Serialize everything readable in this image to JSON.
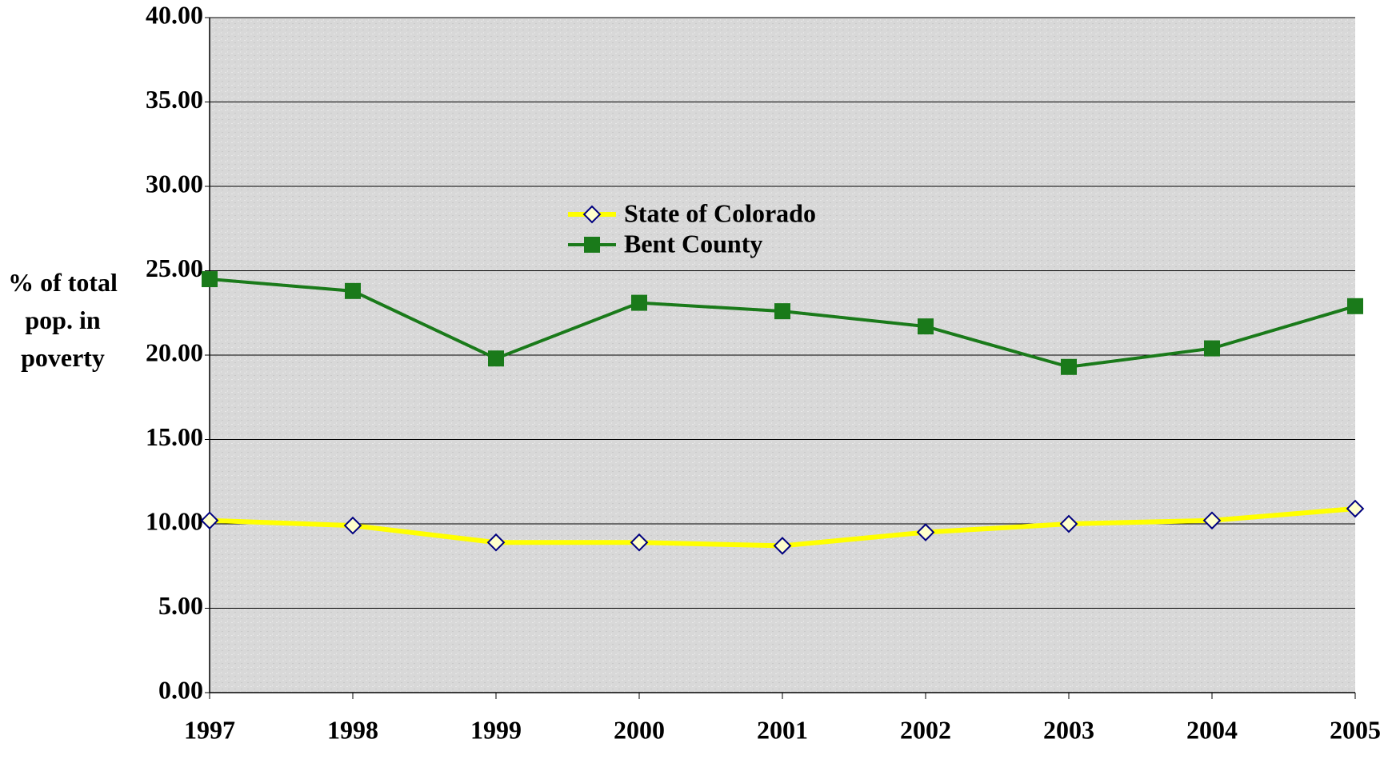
{
  "chart_data": {
    "type": "line",
    "y_label": "% of total pop. in poverty",
    "categories": [
      "1997",
      "1998",
      "1999",
      "2000",
      "2001",
      "2002",
      "2003",
      "2004",
      "2005"
    ],
    "series": [
      {
        "name": "State of Colorado",
        "color": "#ffff00",
        "marker_color": "#000080",
        "values": [
          10.2,
          9.9,
          8.9,
          8.9,
          8.7,
          9.5,
          10.0,
          10.2,
          10.9
        ]
      },
      {
        "name": "Bent County",
        "color": "#1a7a1a",
        "values": [
          24.5,
          23.8,
          19.8,
          23.1,
          22.6,
          21.7,
          19.3,
          20.4,
          22.9
        ]
      }
    ],
    "ylim": [
      0,
      40
    ],
    "yticks": [
      {
        "value": 0,
        "label": "0.00"
      },
      {
        "value": 5,
        "label": "5.00"
      },
      {
        "value": 10,
        "label": "10.00"
      },
      {
        "value": 15,
        "label": "15.00"
      },
      {
        "value": 20,
        "label": "20.00"
      },
      {
        "value": 25,
        "label": "25.00"
      },
      {
        "value": 30,
        "label": "30.00"
      },
      {
        "value": 35,
        "label": "35.00"
      },
      {
        "value": 40,
        "label": "40.00"
      }
    ],
    "grid": true
  }
}
